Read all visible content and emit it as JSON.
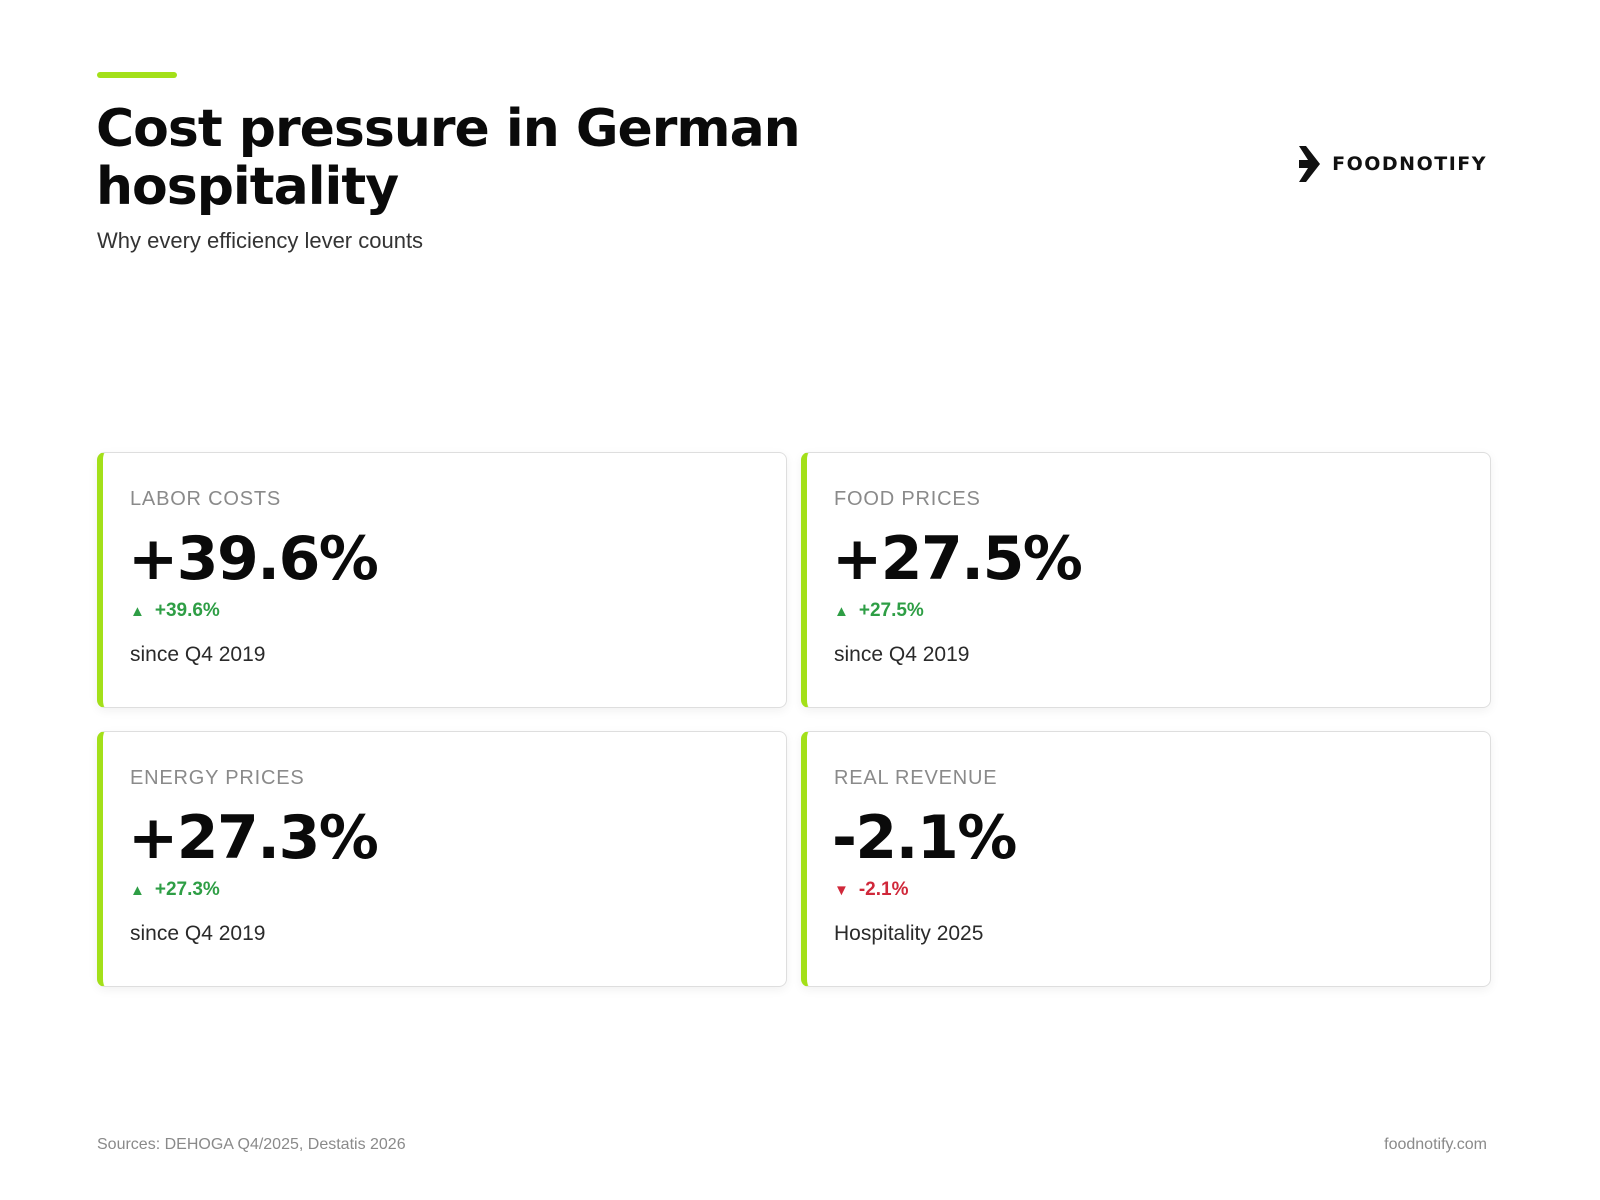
{
  "header": {
    "title": "Cost pressure in German hospitality",
    "subtitle": "Why every efficiency lever counts"
  },
  "brand": {
    "name": "FOODNOTIFY",
    "icon": "foodnotify-logo-icon"
  },
  "colors": {
    "accent": "#a3e019",
    "positive": "#2e9e45",
    "negative": "#d0283a"
  },
  "cards": [
    {
      "label": "LABOR COSTS",
      "value": "+39.6%",
      "change": "+39.6%",
      "direction": "up",
      "arrow": "▲",
      "note": "since Q4 2019"
    },
    {
      "label": "FOOD PRICES",
      "value": "+27.5%",
      "change": "+27.5%",
      "direction": "up",
      "arrow": "▲",
      "note": "since Q4 2019"
    },
    {
      "label": "ENERGY PRICES",
      "value": "+27.3%",
      "change": "+27.3%",
      "direction": "up",
      "arrow": "▲",
      "note": "since Q4 2019"
    },
    {
      "label": "REAL REVENUE",
      "value": "-2.1%",
      "change": "-2.1%",
      "direction": "down",
      "arrow": "▼",
      "note": "Hospitality 2025"
    }
  ],
  "footer": {
    "sources": "Sources: DEHOGA Q4/2025, Destatis 2026",
    "website": "foodnotify.com"
  }
}
